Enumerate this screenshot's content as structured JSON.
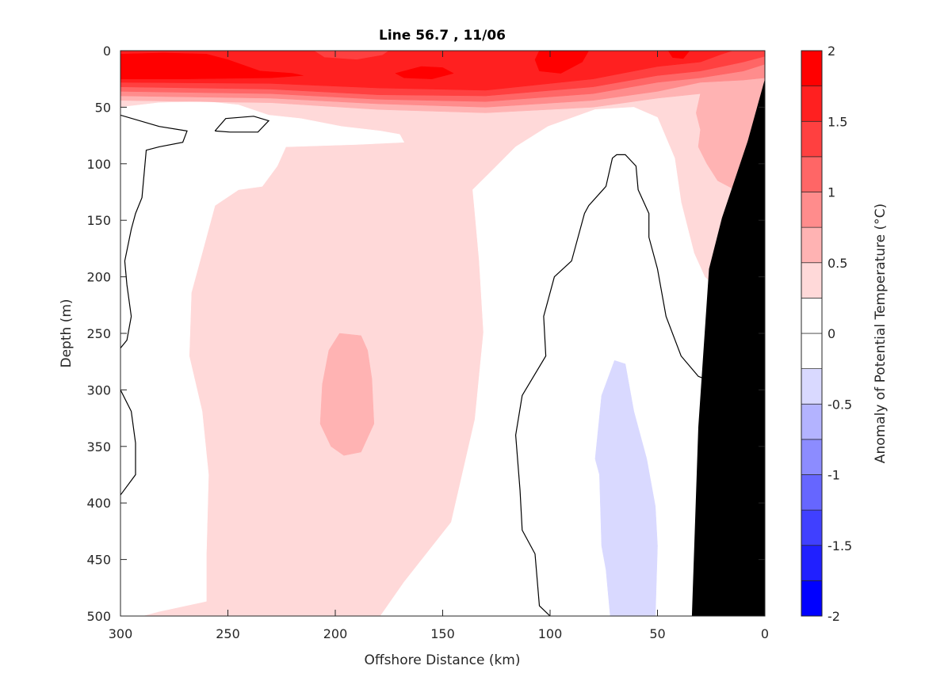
{
  "chart_data": {
    "type": "contour",
    "title": "Line 56.7 , 11/06",
    "xlabel": "Offshore Distance (km)",
    "ylabel": "Depth (m)",
    "xlim": [
      300,
      0
    ],
    "ylim": [
      500,
      0
    ],
    "x_reversed": true,
    "y_reversed": true,
    "xticks": [
      300,
      250,
      200,
      150,
      100,
      50,
      0
    ],
    "yticks": [
      0,
      50,
      100,
      150,
      200,
      250,
      300,
      350,
      400,
      450,
      500
    ],
    "grid": false,
    "colorbar": {
      "label": "Anomaly of Potential Temperature (°C)",
      "placement": "right",
      "range": [
        -2,
        2
      ],
      "ticks": [
        2,
        1.5,
        1,
        0.5,
        0,
        -0.5,
        -1,
        -1.5,
        -2
      ],
      "levels": [
        -2,
        -1.75,
        -1.5,
        -1.25,
        -1,
        -0.75,
        -0.5,
        -0.25,
        0,
        0.25,
        0.5,
        0.75,
        1,
        1.25,
        1.5,
        1.75,
        2
      ],
      "band_colors": [
        "#0000ff",
        "#2020ff",
        "#4040ff",
        "#6666ff",
        "#8c8cff",
        "#b3b3ff",
        "#d9d9ff",
        "#ffffff",
        "#ffffff",
        "#ffd9d9",
        "#ffb3b3",
        "#ff8c8c",
        "#ff6666",
        "#ff4040",
        "#ff2020",
        "#ff0000"
      ]
    },
    "filled_regions": [
      {
        "level": 0.25,
        "color": "#ffd9d9",
        "points": [
          [
            300,
            0
          ],
          [
            0,
            0
          ],
          [
            0,
            500
          ],
          [
            300,
            500
          ]
        ]
      },
      {
        "level": 0,
        "color": "#ffffff",
        "points": [
          [
            300,
            50
          ],
          [
            282,
            46
          ],
          [
            260,
            45
          ],
          [
            245,
            48
          ],
          [
            231,
            57
          ],
          [
            216,
            60
          ],
          [
            197,
            67
          ],
          [
            179,
            71
          ],
          [
            170,
            74
          ],
          [
            168,
            81
          ],
          [
            190,
            83
          ],
          [
            223,
            85
          ],
          [
            227,
            102
          ],
          [
            234,
            120
          ],
          [
            245,
            123
          ],
          [
            256,
            137
          ],
          [
            262,
            179
          ],
          [
            267,
            214
          ],
          [
            268,
            270
          ],
          [
            262,
            319
          ],
          [
            259,
            375
          ],
          [
            260,
            445
          ],
          [
            260,
            487
          ],
          [
            282,
            496
          ],
          [
            290,
            500
          ],
          [
            300,
            500
          ]
        ]
      },
      {
        "level": 0,
        "color": "#ffffff",
        "points": [
          [
            135,
            144
          ],
          [
            136,
            123
          ],
          [
            127,
            106
          ],
          [
            116,
            85
          ],
          [
            101,
            67
          ],
          [
            79,
            52
          ],
          [
            61,
            50
          ],
          [
            50,
            59
          ],
          [
            42,
            95
          ],
          [
            39,
            134
          ],
          [
            33,
            179
          ],
          [
            28,
            200
          ],
          [
            24,
            207
          ],
          [
            30,
            500
          ],
          [
            179,
            500
          ],
          [
            168,
            470
          ],
          [
            146,
            417
          ],
          [
            135,
            326
          ],
          [
            131,
            249
          ],
          [
            133,
            186
          ]
        ]
      },
      {
        "level": -0.25,
        "color": "#d9d9ff",
        "points": [
          [
            70,
            274
          ],
          [
            65,
            277
          ],
          [
            61,
            319
          ],
          [
            55,
            361
          ],
          [
            51,
            403
          ],
          [
            50,
            438
          ],
          [
            51,
            500
          ],
          [
            72,
            500
          ],
          [
            74,
            459
          ],
          [
            76,
            438
          ],
          [
            77,
            375
          ],
          [
            79,
            361
          ],
          [
            76,
            305
          ]
        ]
      },
      {
        "level": 0.5,
        "color": "#ffb3b3",
        "points": [
          [
            300,
            0
          ],
          [
            0,
            0
          ],
          [
            0,
            130
          ],
          [
            5,
            130
          ],
          [
            12,
            125
          ],
          [
            22,
            115
          ],
          [
            27,
            100
          ],
          [
            31,
            85
          ],
          [
            30,
            70
          ],
          [
            32,
            55
          ],
          [
            30,
            38
          ],
          [
            50,
            42
          ],
          [
            80,
            50
          ],
          [
            130,
            55
          ],
          [
            180,
            52
          ],
          [
            230,
            46
          ],
          [
            300,
            44
          ]
        ]
      },
      {
        "level": 0.5,
        "color": "#ffb3b3",
        "points": [
          [
            188,
            252
          ],
          [
            198,
            250
          ],
          [
            203,
            265
          ],
          [
            206,
            295
          ],
          [
            207,
            330
          ],
          [
            202,
            350
          ],
          [
            196,
            358
          ],
          [
            188,
            355
          ],
          [
            182,
            330
          ],
          [
            183,
            290
          ],
          [
            185,
            265
          ]
        ]
      },
      {
        "level": 0.75,
        "color": "#ff8c8c",
        "points": [
          [
            300,
            0
          ],
          [
            0,
            0
          ],
          [
            0,
            24
          ],
          [
            10,
            26
          ],
          [
            30,
            28
          ],
          [
            50,
            36
          ],
          [
            80,
            44
          ],
          [
            130,
            50
          ],
          [
            180,
            47
          ],
          [
            230,
            42
          ],
          [
            300,
            40
          ]
        ]
      },
      {
        "level": 1.0,
        "color": "#ff6666",
        "points": [
          [
            300,
            0
          ],
          [
            0,
            0
          ],
          [
            0,
            12
          ],
          [
            10,
            18
          ],
          [
            30,
            24
          ],
          [
            50,
            28
          ],
          [
            80,
            38
          ],
          [
            130,
            45
          ],
          [
            180,
            43
          ],
          [
            230,
            38
          ],
          [
            300,
            36
          ]
        ]
      },
      {
        "level": 1.25,
        "color": "#ff4040",
        "points": [
          [
            300,
            0
          ],
          [
            0,
            0
          ],
          [
            0,
            5
          ],
          [
            10,
            10
          ],
          [
            30,
            18
          ],
          [
            50,
            22
          ],
          [
            80,
            32
          ],
          [
            130,
            40
          ],
          [
            180,
            39
          ],
          [
            230,
            34
          ],
          [
            300,
            32
          ]
        ]
      },
      {
        "level": 1.5,
        "color": "#ff2020",
        "points": [
          [
            300,
            0
          ],
          [
            210,
            0
          ],
          [
            205,
            6
          ],
          [
            190,
            8
          ],
          [
            178,
            4
          ],
          [
            175,
            0
          ],
          [
            15,
            0
          ],
          [
            20,
            3
          ],
          [
            30,
            10
          ],
          [
            50,
            14
          ],
          [
            80,
            25
          ],
          [
            130,
            35
          ],
          [
            180,
            33
          ],
          [
            230,
            29
          ],
          [
            300,
            28
          ]
        ]
      },
      {
        "level": 1.75,
        "color": "#ff0000",
        "points": [
          [
            300,
            3
          ],
          [
            280,
            2
          ],
          [
            260,
            3
          ],
          [
            250,
            8
          ],
          [
            235,
            18
          ],
          [
            220,
            20
          ],
          [
            215,
            22
          ],
          [
            230,
            24
          ],
          [
            270,
            25
          ],
          [
            300,
            25
          ]
        ]
      },
      {
        "level": 1.75,
        "color": "#ff0000",
        "points": [
          [
            172,
            20
          ],
          [
            160,
            14
          ],
          [
            150,
            15
          ],
          [
            145,
            20
          ],
          [
            155,
            25
          ],
          [
            168,
            24
          ]
        ]
      },
      {
        "level": 1.75,
        "color": "#ff0000",
        "points": [
          [
            105,
            0
          ],
          [
            82,
            0
          ],
          [
            85,
            10
          ],
          [
            95,
            20
          ],
          [
            105,
            18
          ],
          [
            107,
            8
          ]
        ]
      },
      {
        "level": 1.75,
        "color": "#ff0000",
        "points": [
          [
            45,
            0
          ],
          [
            35,
            0
          ],
          [
            38,
            7
          ],
          [
            43,
            6
          ]
        ]
      }
    ],
    "zero_contours": [
      [
        [
          300,
          57
        ],
        [
          282,
          67
        ],
        [
          269,
          71
        ],
        [
          271,
          81
        ],
        [
          282,
          85
        ],
        [
          288,
          88
        ],
        [
          290,
          130
        ],
        [
          293,
          144
        ],
        [
          295,
          158
        ],
        [
          298,
          186
        ],
        [
          297,
          207
        ],
        [
          295,
          235
        ],
        [
          297,
          256
        ],
        [
          300,
          263
        ]
      ],
      [
        [
          300,
          300
        ],
        [
          295,
          319
        ],
        [
          293,
          347
        ],
        [
          293,
          375
        ],
        [
          300,
          393
        ]
      ],
      [
        [
          256,
          71
        ],
        [
          251,
          60
        ],
        [
          238,
          58
        ],
        [
          231,
          62
        ],
        [
          236,
          72
        ],
        [
          249,
          72
        ],
        [
          256,
          71
        ]
      ],
      [
        [
          100,
          500
        ],
        [
          105,
          491
        ],
        [
          107,
          445
        ],
        [
          113,
          424
        ],
        [
          114,
          389
        ],
        [
          116,
          340
        ],
        [
          113,
          305
        ],
        [
          102,
          270
        ],
        [
          103,
          235
        ],
        [
          98,
          200
        ],
        [
          90,
          186
        ],
        [
          84,
          144
        ],
        [
          82,
          137
        ],
        [
          74,
          120
        ],
        [
          71,
          95
        ],
        [
          69,
          92
        ],
        [
          65,
          92
        ],
        [
          60,
          102
        ],
        [
          59,
          123
        ],
        [
          54,
          144
        ],
        [
          54,
          165
        ],
        [
          50,
          193
        ],
        [
          46,
          235
        ],
        [
          39,
          270
        ],
        [
          31,
          288
        ],
        [
          27,
          291
        ]
      ]
    ],
    "land_mask": {
      "color": "#000000",
      "points": [
        [
          0,
          25
        ],
        [
          8,
          80
        ],
        [
          20,
          148
        ],
        [
          26,
          193
        ],
        [
          31,
          333
        ],
        [
          34,
          500
        ],
        [
          0,
          500
        ]
      ]
    }
  }
}
